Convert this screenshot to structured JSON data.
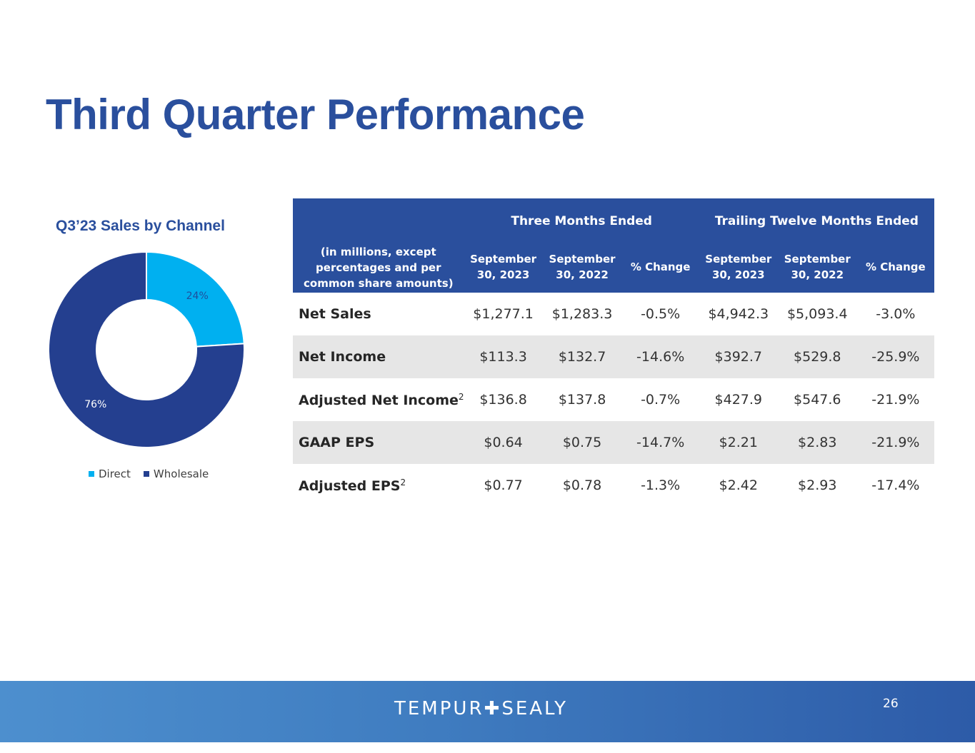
{
  "slide": {
    "title": "Third Quarter Performance",
    "page_number": "26"
  },
  "chart": {
    "title": "Q3’23 Sales by Channel",
    "legend": [
      {
        "label": "Direct",
        "color": "#00b0f0"
      },
      {
        "label": "Wholesale",
        "color": "#243f8f"
      }
    ]
  },
  "chart_data": {
    "type": "pie",
    "title": "Q3’23 Sales by Channel",
    "labels": [
      "Direct",
      "Wholesale"
    ],
    "values": [
      24,
      76
    ],
    "value_labels": [
      "24%",
      "76%"
    ],
    "colors": [
      "#00b0f0",
      "#243f8f"
    ],
    "donut": true,
    "legend_position": "bottom"
  },
  "table": {
    "group_headers": {
      "three_months": "Three Months Ended",
      "trailing": "Trailing Twelve Months Ended"
    },
    "row_header": "(in millions, except percentages and per common share amounts)",
    "columns": [
      "September 30, 2023",
      "September 30, 2022",
      "% Change",
      "September 30, 2023",
      "September 30, 2022",
      "% Change"
    ],
    "rows": [
      {
        "label": "Net Sales",
        "sup": "",
        "values": [
          "$1,277.1",
          "$1,283.3",
          "-0.5%",
          "$4,942.3",
          "$5,093.4",
          "-3.0%"
        ]
      },
      {
        "label": "Net Income",
        "sup": "",
        "values": [
          "$113.3",
          "$132.7",
          "-14.6%",
          "$392.7",
          "$529.8",
          "-25.9%"
        ]
      },
      {
        "label": "Adjusted Net Income",
        "sup": "2",
        "values": [
          "$136.8",
          "$137.8",
          "-0.7%",
          "$427.9",
          "$547.6",
          "-21.9%"
        ]
      },
      {
        "label": "GAAP EPS",
        "sup": "",
        "values": [
          "$0.64",
          "$0.75",
          "-14.7%",
          "$2.21",
          "$2.83",
          "-21.9%"
        ]
      },
      {
        "label": "Adjusted EPS",
        "sup": "2",
        "values": [
          "$0.77",
          "$0.78",
          "-1.3%",
          "$2.42",
          "$2.93",
          "-17.4%"
        ]
      }
    ]
  },
  "footer": {
    "logo_left": "TEMPUR",
    "logo_right": "SEALY",
    "logo_mark": "✚"
  }
}
